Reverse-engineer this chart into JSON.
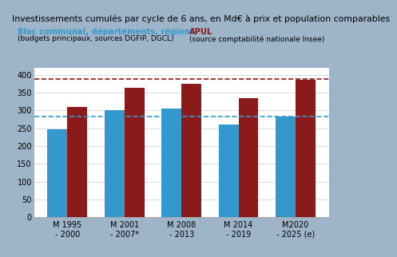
{
  "title": "Investissements cumulés par cycle de 6 ans, en Md€ à prix et population comparables",
  "categories": [
    "M 1995\n- 2000",
    "M 2001\n- 2007*",
    "M 2008\n- 2013",
    "M 2014\n- 2019",
    "M2020\n- 2025 (e)"
  ],
  "blue_values": [
    247,
    301,
    305,
    261,
    282
  ],
  "red_values": [
    310,
    363,
    374,
    334,
    385
  ],
  "blue_color": "#3399CC",
  "red_color": "#8B1A1A",
  "blue_dashed_line": 282,
  "red_dashed_line": 388,
  "ylim": [
    0,
    420
  ],
  "yticks": [
    0,
    50,
    100,
    150,
    200,
    250,
    300,
    350,
    400
  ],
  "legend_blue_label": "Bloc communal, départements, régions",
  "legend_blue_sublabel": "(budgets principaux, sources DGFIP, DGCL)",
  "legend_red_label": "APUL",
  "legend_red_sublabel": "(source comptabilité nationale Insee)",
  "title_fontsize": 7.8,
  "tick_fontsize": 7.0,
  "legend_fontsize": 7.2,
  "legend_sub_fontsize": 6.5,
  "bg_color": "#FFFFFF",
  "outer_bg": "#9EB4C8"
}
